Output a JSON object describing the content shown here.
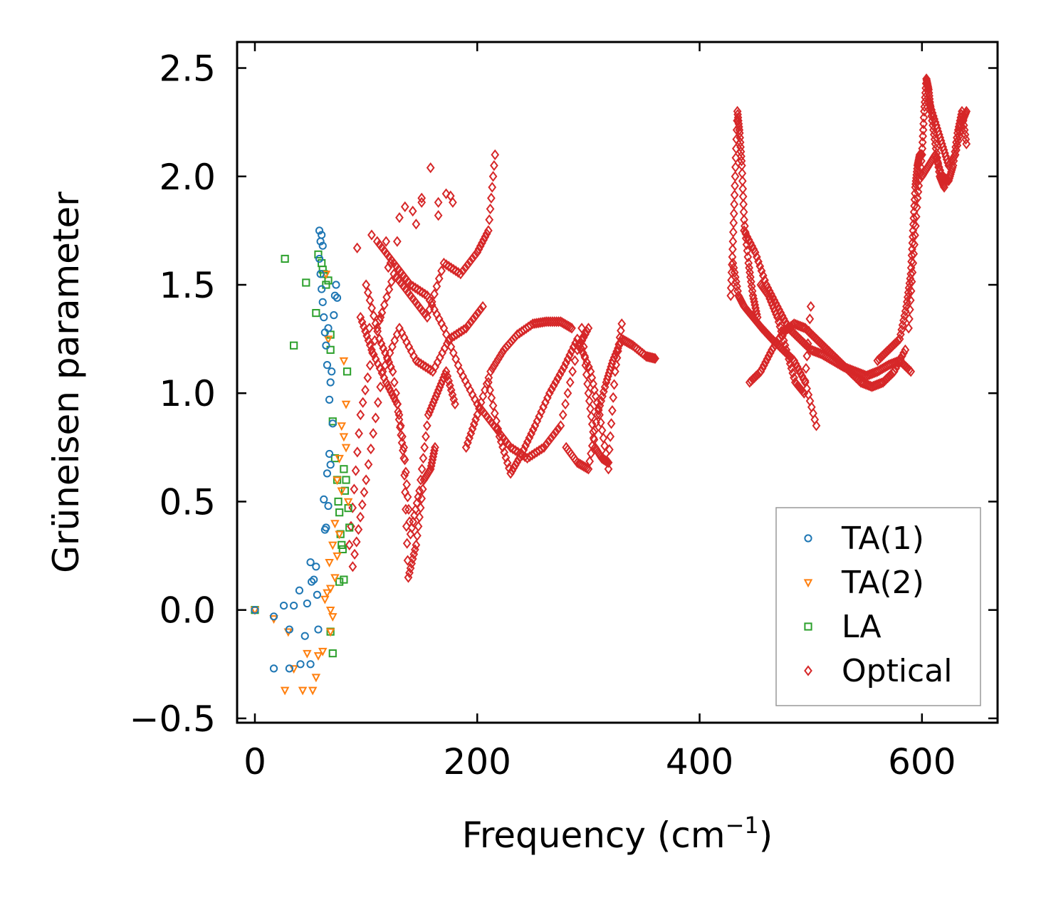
{
  "chart_data": {
    "type": "scatter",
    "title": "",
    "xlabel": "Frequency (cm",
    "xlabel_sup": "−1",
    "xlabel_suffix": ")",
    "ylabel": "Grüneisen parameter",
    "xlim": [
      -16,
      668
    ],
    "ylim": [
      -0.52,
      2.62
    ],
    "xticks": [
      0,
      200,
      400,
      600
    ],
    "xtick_labels": [
      "0",
      "200",
      "400",
      "600"
    ],
    "yticks": [
      -0.5,
      0.0,
      0.5,
      1.0,
      1.5,
      2.0,
      2.5
    ],
    "ytick_labels": [
      "−0.5",
      "0.0",
      "0.5",
      "1.0",
      "1.5",
      "2.0",
      "2.5"
    ],
    "legend_position": "bottom-right",
    "series": [
      {
        "name": "TA(1)",
        "marker": "circle",
        "color": "#1f77b4",
        "x": [
          0,
          17,
          26,
          31,
          35,
          40,
          45,
          47,
          50,
          51,
          53,
          55,
          56,
          57,
          58,
          59,
          60,
          61,
          62,
          63,
          64,
          65,
          66,
          67,
          68,
          69,
          70,
          71,
          72,
          73,
          74,
          17,
          31,
          41,
          50,
          58,
          59,
          60,
          61,
          62,
          63,
          64,
          65,
          66,
          67,
          68
        ],
        "y": [
          0.0,
          -0.03,
          0.02,
          -0.09,
          0.02,
          0.09,
          -0.12,
          0.03,
          0.22,
          0.13,
          0.14,
          0.2,
          0.07,
          -0.09,
          1.75,
          1.7,
          1.73,
          1.68,
          0.51,
          0.37,
          0.38,
          1.13,
          1.3,
          0.97,
          1.05,
          1.1,
          0.86,
          1.36,
          1.45,
          1.5,
          1.44,
          -0.27,
          -0.27,
          -0.25,
          -0.25,
          1.62,
          1.55,
          1.48,
          1.42,
          1.35,
          1.28,
          1.22,
          0.63,
          0.48,
          0.72,
          0.67
        ]
      },
      {
        "name": "TA(2)",
        "marker": "triangle",
        "color": "#ff7f0e",
        "x": [
          0,
          17,
          27,
          30,
          35,
          43,
          47,
          52,
          55,
          57,
          61,
          63,
          65,
          67,
          68,
          70,
          72,
          74,
          76,
          78,
          80,
          82,
          84,
          68,
          70,
          72,
          74,
          76,
          78,
          80,
          82,
          64,
          66,
          68
        ],
        "y": [
          0.0,
          -0.04,
          -0.37,
          -0.1,
          -0.27,
          -0.37,
          -0.2,
          -0.37,
          -0.31,
          -0.21,
          -0.19,
          0.05,
          0.08,
          0.22,
          0.1,
          0.3,
          0.4,
          0.6,
          0.7,
          0.85,
          1.15,
          0.75,
          0.5,
          -0.1,
          -0.03,
          0.15,
          0.25,
          0.35,
          0.55,
          0.8,
          0.95,
          1.55,
          1.25,
          0.0
        ]
      },
      {
        "name": "LA",
        "marker": "square",
        "color": "#2ca02c",
        "x": [
          0,
          27,
          35,
          46,
          55,
          57,
          60,
          61,
          62,
          64,
          66,
          68,
          68,
          70,
          72,
          74,
          75,
          76,
          77,
          78,
          79,
          80,
          81,
          82,
          83,
          84,
          85,
          68,
          70,
          76,
          80
        ],
        "y": [
          0.0,
          1.62,
          1.22,
          1.51,
          1.37,
          1.64,
          1.6,
          1.57,
          1.55,
          1.5,
          1.52,
          1.2,
          1.27,
          0.87,
          0.7,
          0.6,
          0.5,
          0.45,
          0.35,
          0.3,
          0.28,
          0.65,
          0.55,
          0.6,
          1.1,
          0.47,
          0.38,
          -0.1,
          -0.2,
          0.13,
          0.14
        ]
      },
      {
        "name": "Optical",
        "marker": "diamond",
        "color": "#d62728",
        "segments": [
          {
            "x": [
              85,
              95,
              110,
              125,
              140,
              155,
              170,
              185,
              200,
              210,
              216
            ],
            "y": [
              0.3,
              0.9,
              1.3,
              1.55,
              1.45,
              1.35,
              1.6,
              1.55,
              1.65,
              1.75,
              2.1
            ]
          },
          {
            "x": [
              88,
              100,
              115,
              130,
              145,
              160,
              175,
              190,
              205
            ],
            "y": [
              0.2,
              0.6,
              1.1,
              1.3,
              1.15,
              1.1,
              1.25,
              1.3,
              1.4
            ]
          },
          {
            "x": [
              95,
              105,
              118,
              128,
              134,
              138,
              145,
              152,
              158,
              162
            ],
            "y": [
              1.35,
              1.2,
              1.05,
              0.95,
              0.7,
              0.15,
              0.3,
              0.6,
              0.65,
              0.75
            ]
          },
          {
            "x": [
              100,
              112,
              124,
              134,
              140,
              148,
              156,
              164,
              172,
              180
            ],
            "y": [
              1.5,
              1.25,
              1.1,
              0.75,
              0.35,
              0.55,
              0.9,
              1.0,
              1.1,
              0.95
            ]
          },
          {
            "x": [
              110,
              125,
              140,
              155,
              170,
              185,
              200,
              215,
              230,
              245,
              260,
              275,
              290,
              300
            ],
            "y": [
              1.7,
              1.6,
              1.5,
              1.45,
              1.3,
              1.1,
              0.95,
              0.85,
              0.75,
              0.7,
              0.75,
              0.85,
              1.2,
              1.3
            ]
          },
          {
            "x": [
              190,
              200,
              212,
              224,
              236,
              250,
              262,
              275,
              285
            ],
            "y": [
              0.75,
              0.9,
              1.1,
              1.2,
              1.27,
              1.32,
              1.33,
              1.33,
              1.3
            ]
          },
          {
            "x": [
              210,
              220,
              230,
              240,
              252,
              265,
              278,
              290,
              302,
              310,
              318
            ],
            "y": [
              1.05,
              0.8,
              0.63,
              0.72,
              0.85,
              1.0,
              1.12,
              1.25,
              1.1,
              0.9,
              0.65
            ]
          },
          {
            "x": [
              280,
              290,
              300,
              308,
              316,
              322,
              330,
              340,
              352,
              360
            ],
            "y": [
              0.75,
              0.68,
              0.65,
              0.9,
              1.05,
              1.15,
              1.25,
              1.22,
              1.17,
              1.16
            ]
          },
          {
            "x": [
              294,
              300,
              306,
              312,
              318,
              324,
              330
            ],
            "y": [
              1.3,
              1.0,
              0.75,
              0.7,
              0.68,
              1.1,
              1.32
            ]
          },
          {
            "x": [
              428,
              430,
              432,
              434,
              436,
              438,
              440,
              444,
              448,
              452
            ],
            "y": [
              1.45,
              1.7,
              2.0,
              2.3,
              2.2,
              2.05,
              1.8,
              1.6,
              1.45,
              1.35
            ]
          },
          {
            "x": [
              430,
              435,
              440,
              448,
              456,
              465,
              475,
              485,
              495,
              505
            ],
            "y": [
              1.6,
              1.45,
              1.4,
              1.35,
              1.3,
              1.25,
              1.2,
              1.15,
              1.05,
              0.85
            ]
          },
          {
            "x": [
              440,
              450,
              460,
              470,
              480,
              490,
              500,
              510,
              520,
              530,
              540,
              550,
              560,
              570,
              580,
              590
            ],
            "y": [
              1.75,
              1.65,
              1.5,
              1.4,
              1.3,
              1.25,
              1.2,
              1.18,
              1.15,
              1.12,
              1.1,
              1.08,
              1.1,
              1.13,
              1.15,
              1.1
            ]
          },
          {
            "x": [
              445,
              455,
              465,
              475,
              485,
              495,
              505,
              515,
              525,
              535,
              545,
              555,
              565,
              575,
              585
            ],
            "y": [
              1.05,
              1.1,
              1.2,
              1.28,
              1.32,
              1.3,
              1.25,
              1.2,
              1.15,
              1.1,
              1.05,
              1.03,
              1.05,
              1.1,
              1.2
            ]
          },
          {
            "x": [
              455,
              462,
              470,
              478,
              486,
              494,
              500
            ],
            "y": [
              1.5,
              1.45,
              1.35,
              1.2,
              1.05,
              1.0,
              1.4
            ]
          },
          {
            "x": [
              560,
              570,
              580,
              586,
              590,
              592,
              594,
              596,
              598,
              600
            ],
            "y": [
              1.15,
              1.2,
              1.25,
              1.4,
              1.55,
              1.75,
              1.95,
              2.05,
              2.1,
              2.1
            ]
          },
          {
            "x": [
              588,
              592,
              596,
              600,
              602,
              604,
              606,
              608,
              612,
              616,
              620
            ],
            "y": [
              1.3,
              1.6,
              1.9,
              2.1,
              2.3,
              2.45,
              2.4,
              2.3,
              2.15,
              2.0,
              1.95
            ]
          },
          {
            "x": [
              600,
              606,
              612,
              618,
              624,
              628,
              632,
              636,
              640
            ],
            "y": [
              2.0,
              2.05,
              2.1,
              2.0,
              1.98,
              2.05,
              2.2,
              2.3,
              2.15
            ]
          },
          {
            "x": [
              606,
              612,
              618,
              624,
              630,
              636,
              640
            ],
            "y": [
              2.35,
              2.25,
              2.15,
              2.05,
              2.1,
              2.25,
              2.3
            ]
          }
        ],
        "scattered": {
          "x": [
            105,
            118,
            120,
            128,
            135,
            142,
            150,
            158,
            165,
            172,
            178,
            150,
            176,
            165,
            130,
            92,
            103,
            113,
            145,
            122
          ],
          "y": [
            1.73,
            1.7,
            1.58,
            1.7,
            1.86,
            1.84,
            1.88,
            2.04,
            1.88,
            1.92,
            1.88,
            1.9,
            1.91,
            1.82,
            1.81,
            1.67,
            1.3,
            1.35,
            1.78,
            1.6
          ]
        }
      }
    ]
  }
}
